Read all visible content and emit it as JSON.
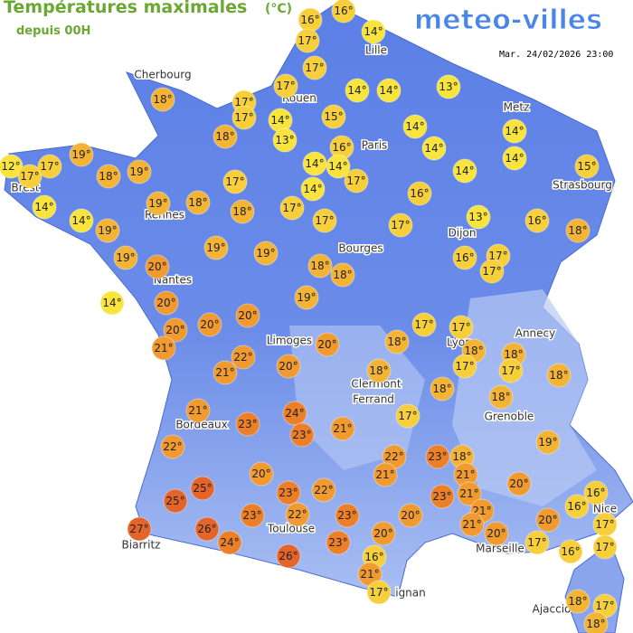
{
  "header": {
    "title": "Températures maximales",
    "unit": "(°C)",
    "subtitle": "depuis 00H",
    "logo": "meteo-villes",
    "date": "Mar. 24/02/2026 23:00"
  },
  "cities": [
    "Cherbourg",
    "Lille",
    "Rouen",
    "Paris",
    "Metz",
    "Strasbourg",
    "Brest",
    "Rennes",
    "Dijon",
    "Bourges",
    "Nantes",
    "Annecy",
    "Limoges",
    "Lyon",
    "Clermont",
    "Ferrand",
    "Grenoble",
    "Bordeaux",
    "Nice",
    "Toulouse",
    "Marseille",
    "Biarritz",
    "ignan",
    "Ajaccio"
  ],
  "temperatures": [
    "16°",
    "16°",
    "17°",
    "14°",
    "17°",
    "17°",
    "14°",
    "14°",
    "13°",
    "18°",
    "17°",
    "17°",
    "14°",
    "15°",
    "13°",
    "18°",
    "16°",
    "14°",
    "14°",
    "14°",
    "14°",
    "12°",
    "17°",
    "17°",
    "19°",
    "18°",
    "19°",
    "14°",
    "14°",
    "17°",
    "14°",
    "15°",
    "17°",
    "14°",
    "16°",
    "14°",
    "14°",
    "19°",
    "18°",
    "18°",
    "17°",
    "17°",
    "17°",
    "13°",
    "16°",
    "18°",
    "19°",
    "19°",
    "19°",
    "19°",
    "20°",
    "18°",
    "18°",
    "16°",
    "17°",
    "17°",
    "14°",
    "20°",
    "19°",
    "20°",
    "20°",
    "20°",
    "17°",
    "17°",
    "21°",
    "20°",
    "18°",
    "18°",
    "18°",
    "22°",
    "20°",
    "17°",
    "17°",
    "18°",
    "21°",
    "18°",
    "18°",
    "18°",
    "21°",
    "24°",
    "17°",
    "23°",
    "23°",
    "21°",
    "19°",
    "22°",
    "22°",
    "23°",
    "18°",
    "21°",
    "21°",
    "20°",
    "20°",
    "25°",
    "23°",
    "23°",
    "21°",
    "16°",
    "16°",
    "25°",
    "22°",
    "20°",
    "21°",
    "17°",
    "20°",
    "23°",
    "22°",
    "23°",
    "21°",
    "27°",
    "26°",
    "20°",
    "20°",
    "17°",
    "24°",
    "23°",
    "16°",
    "17°",
    "26°",
    "16°",
    "21°",
    "17°",
    "18°",
    "17°",
    "18°"
  ]
}
